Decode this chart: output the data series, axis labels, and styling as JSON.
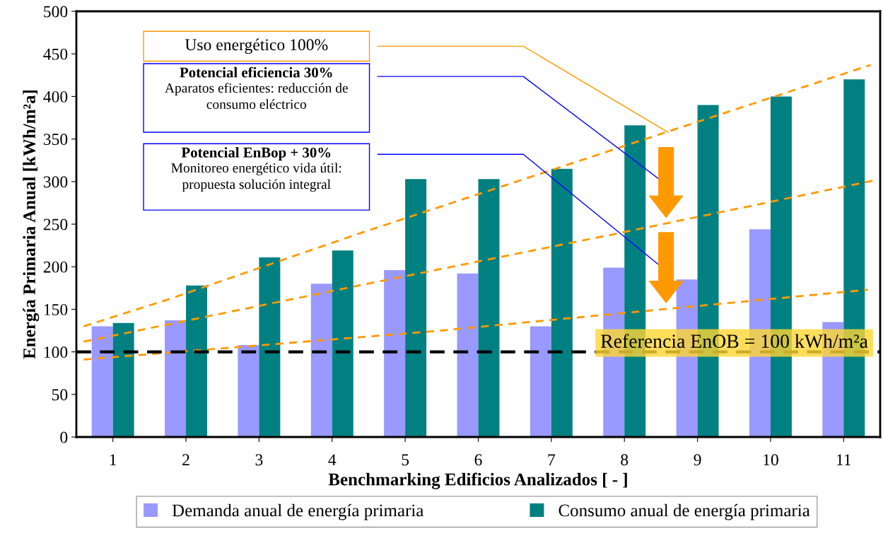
{
  "chart_data": {
    "type": "bar",
    "xlabel": "Benchmarking Edificios Analizados [ - ]",
    "ylabel": "Energía Primaria Anual [kWh/m²a]",
    "x": [
      1,
      2,
      3,
      4,
      5,
      6,
      7,
      8,
      9,
      10,
      11
    ],
    "xlim": [
      0.5,
      11.5
    ],
    "xticks": [
      1,
      2,
      3,
      4,
      5,
      6,
      7,
      8,
      9,
      10,
      11
    ],
    "ylim": [
      0,
      500
    ],
    "yticks": [
      0,
      50,
      100,
      150,
      200,
      250,
      300,
      350,
      400,
      450,
      500
    ],
    "series": [
      {
        "name": "Demanda anual de energía primaria",
        "color": "#9999ff",
        "values": [
          130,
          137,
          108,
          180,
          196,
          192,
          130,
          199,
          185,
          244,
          135
        ]
      },
      {
        "name": "Consumo anual de energía primaria",
        "color": "#008080",
        "values": [
          134,
          178,
          211,
          219,
          303,
          303,
          315,
          366,
          390,
          400,
          420
        ]
      },
      {
        "type": "line",
        "color": "#ff9900",
        "line_style": "dashed",
        "x": [
          0.6,
          1.77,
          4.37,
          8.57,
          11.37
        ],
        "values": [
          130,
          162,
          239,
          358,
          437
        ]
      },
      {
        "type": "line",
        "color": "#ff9900",
        "line_style": "dashed",
        "x": [
          0.6,
          4.37,
          7.9,
          11.4
        ],
        "values": [
          112,
          178,
          239,
          301
        ]
      },
      {
        "type": "line",
        "color": "#ff9900",
        "line_style": "dashed",
        "x": [
          0.6,
          5.36,
          11.33
        ],
        "values": [
          91,
          124,
          173
        ]
      }
    ],
    "ref_lines": [
      {
        "axis": "y",
        "value": 100,
        "label": "Referencia EnOB = 100 kWh/m²a",
        "color": "#000000",
        "line_style": "dashed"
      }
    ],
    "annotations": [
      "Uso energético 100%",
      "Potencial eficiencia 30%\nAparatos eficientes: reducción de\nconsumo eléctrico",
      "Potencial EnBop + 30%\nMonitoreo energético vida útil:\npropuesta solución integral"
    ],
    "legend": "bottom",
    "grid": false
  }
}
